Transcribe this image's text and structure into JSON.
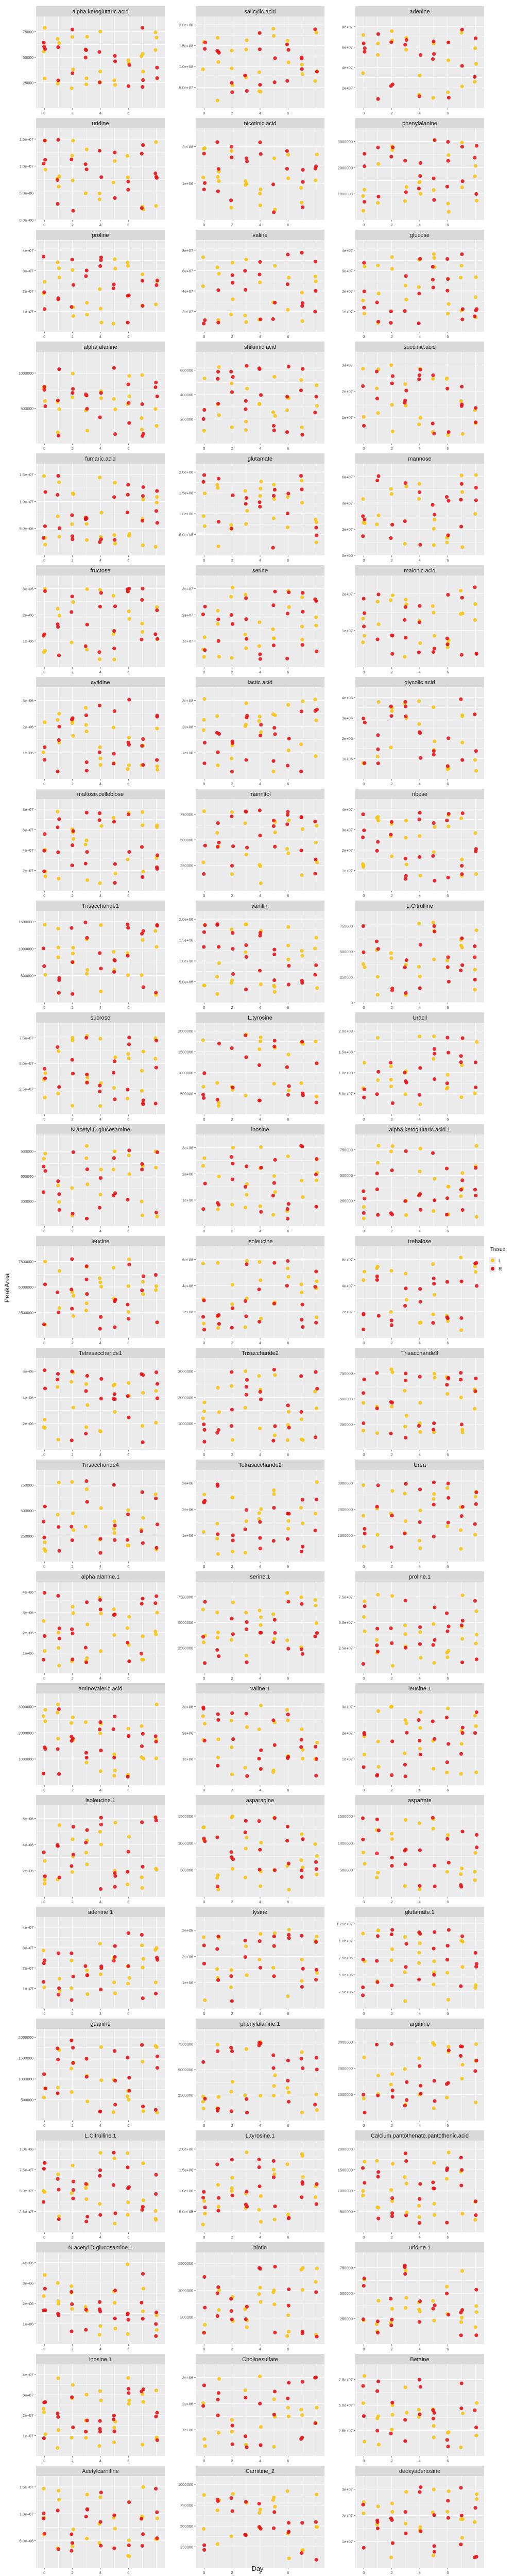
{
  "figure": {
    "xlabel": "Day",
    "ylabel": "PeakArea",
    "legend_title": "Tissue",
    "legend_position": "right",
    "x_ticks": [
      "0",
      "2",
      "4",
      "6"
    ],
    "series": [
      {
        "name": "L",
        "color": "#F5C518"
      },
      {
        "name": "R",
        "color": "#E0161A"
      }
    ],
    "panel_bg": "#EBEBEB",
    "strip_bg": "#D9D9D9",
    "grid_color": "#FFFFFF"
  },
  "chart_data": {
    "type": "scatter",
    "facets": [
      {
        "title": "alpha.ketoglutaric.acid",
        "y_ticks": [
          "25000",
          "50000",
          "75000"
        ],
        "ylim": [
          0,
          90000
        ]
      },
      {
        "title": "salicylic.acid",
        "y_ticks": [
          "5.0e+07",
          "1.0e+08",
          "1.5e+08",
          "2.0e+08"
        ],
        "ylim": [
          0,
          220000000.0
        ]
      },
      {
        "title": "adenine",
        "y_ticks": [
          "2e+07",
          "4e+07",
          "6e+07",
          "8e+07"
        ],
        "ylim": [
          0,
          90000000.0
        ]
      },
      {
        "title": "uridine",
        "y_ticks": [
          "0.0e+00",
          "5.0e+06",
          "1.0e+07",
          "1.5e+07"
        ],
        "ylim": [
          0,
          17000000.0
        ]
      },
      {
        "title": "nicotinic.acid",
        "y_ticks": [
          "1e+06",
          "2e+06"
        ],
        "ylim": [
          0,
          2500000.0
        ]
      },
      {
        "title": "phenylalanine",
        "y_ticks": [
          "1000000",
          "2000000",
          "3000000"
        ],
        "ylim": [
          0,
          3500000
        ]
      },
      {
        "title": "proline",
        "y_ticks": [
          "1e+07",
          "2e+07",
          "3e+07",
          "4e+07"
        ],
        "ylim": [
          0,
          45000000.0
        ]
      },
      {
        "title": "valine",
        "y_ticks": [
          "2e+07",
          "4e+07",
          "6e+07",
          "8e+07"
        ],
        "ylim": [
          0,
          90000000.0
        ]
      },
      {
        "title": "glucose",
        "y_ticks": [
          "1e+07",
          "2e+07",
          "3e+07",
          "4e+07"
        ],
        "ylim": [
          0,
          45000000.0
        ]
      },
      {
        "title": "alpha.alanine",
        "y_ticks": [
          "500000",
          "1000000"
        ],
        "ylim": [
          0,
          1300000
        ]
      },
      {
        "title": "shikimic.acid",
        "y_ticks": [
          "200000",
          "400000",
          "600000"
        ],
        "ylim": [
          0,
          750000
        ]
      },
      {
        "title": "succinic.acid",
        "y_ticks": [
          "1e+07",
          "2e+07",
          "3e+07"
        ],
        "ylim": [
          0,
          35000000.0
        ]
      },
      {
        "title": "fumaric.acid",
        "y_ticks": [
          "5.0e+06",
          "1.0e+07",
          "1.5e+07"
        ],
        "ylim": [
          0,
          17000000.0
        ]
      },
      {
        "title": "glutamate",
        "y_ticks": [
          "5.0e+05",
          "1.0e+06",
          "1.5e+06",
          "2.0e+06"
        ],
        "ylim": [
          0,
          2200000.0
        ]
      },
      {
        "title": "mannose",
        "y_ticks": [
          "0e+00",
          "2e+07",
          "4e+07",
          "6e+07"
        ],
        "ylim": [
          0,
          70000000.0
        ]
      },
      {
        "title": "fructose",
        "y_ticks": [
          "1e+06",
          "2e+06",
          "3e+06"
        ],
        "ylim": [
          0,
          3500000.0
        ]
      },
      {
        "title": "serine",
        "y_ticks": [
          "1e+07",
          "2e+07",
          "3e+07"
        ],
        "ylim": [
          0,
          35000000.0
        ]
      },
      {
        "title": "malonic.acid",
        "y_ticks": [
          "1e+07",
          "2e+07"
        ],
        "ylim": [
          0,
          25000000.0
        ]
      },
      {
        "title": "cytidine",
        "y_ticks": [
          "1e+06",
          "2e+06",
          "3e+06"
        ],
        "ylim": [
          0,
          3500000.0
        ]
      },
      {
        "title": "lactic.acid",
        "y_ticks": [
          "1e+08",
          "2e+08",
          "3e+08"
        ],
        "ylim": [
          0,
          350000000.0
        ]
      },
      {
        "title": "glycolic.acid",
        "y_ticks": [
          "1e+06",
          "2e+06",
          "3e+06",
          "4e+06"
        ],
        "ylim": [
          0,
          4500000.0
        ]
      },
      {
        "title": "maltose.cellobiose",
        "y_ticks": [
          "2e+07",
          "4e+07",
          "6e+07",
          "8e+07"
        ],
        "ylim": [
          0,
          90000000.0
        ]
      },
      {
        "title": "mannitol",
        "y_ticks": [
          "250000",
          "500000",
          "750000"
        ],
        "ylim": [
          0,
          900000
        ]
      },
      {
        "title": "ribose",
        "y_ticks": [
          "1e+07",
          "2e+07",
          "3e+07",
          "4e+07"
        ],
        "ylim": [
          0,
          45000000.0
        ]
      },
      {
        "title": "Trisaccharide1",
        "y_ticks": [
          "500000",
          "1000000",
          "1500000"
        ],
        "ylim": [
          0,
          1700000
        ]
      },
      {
        "title": "vanillin",
        "y_ticks": [
          "5.0e+05",
          "1.0e+06",
          "1.5e+06",
          "2.0e+06"
        ],
        "ylim": [
          0,
          2200000.0
        ]
      },
      {
        "title": "L.Citrulline",
        "y_ticks": [
          "0",
          "250000",
          "500000",
          "750000"
        ],
        "ylim": [
          0,
          900000
        ]
      },
      {
        "title": "sucrose",
        "y_ticks": [
          "2.5e+07",
          "5.0e+07",
          "7.5e+07"
        ],
        "ylim": [
          0,
          90000000.0
        ]
      },
      {
        "title": "L.tyrosine",
        "y_ticks": [
          "500000",
          "1000000",
          "1500000",
          "2000000"
        ],
        "ylim": [
          0,
          2200000
        ]
      },
      {
        "title": "Uracil",
        "y_ticks": [
          "5.0e+07",
          "1.0e+08",
          "1.5e+08",
          "2.0e+08"
        ],
        "ylim": [
          0,
          220000000.0
        ]
      },
      {
        "title": "N.acetyl.D.glucosamine",
        "y_ticks": [
          "300000",
          "600000",
          "900000"
        ],
        "ylim": [
          0,
          1100000
        ]
      },
      {
        "title": "inosine",
        "y_ticks": [
          "1e+06",
          "2e+06",
          "3e+06"
        ],
        "ylim": [
          0,
          3500000.0
        ]
      },
      {
        "title": "alpha.ketoglutaric.acid.1",
        "y_ticks": [
          "250000",
          "500000",
          "750000"
        ],
        "ylim": [
          0,
          900000
        ]
      },
      {
        "title": "leucine",
        "y_ticks": [
          "2500000",
          "5000000",
          "7500000"
        ],
        "ylim": [
          0,
          9000000
        ]
      },
      {
        "title": "isoleucine",
        "y_ticks": [
          "2e+06",
          "4e+06",
          "6e+06"
        ],
        "ylim": [
          0,
          7000000.0
        ]
      },
      {
        "title": "trehalose",
        "y_ticks": [
          "2e+07",
          "4e+07",
          "6e+07"
        ],
        "ylim": [
          0,
          70000000.0
        ]
      },
      {
        "title": "Tetrasaccharide1",
        "y_ticks": [
          "2e+06",
          "4e+06",
          "6e+06"
        ],
        "ylim": [
          0,
          7000000.0
        ]
      },
      {
        "title": "Trisaccharide2",
        "y_ticks": [
          "1000000",
          "2000000",
          "3000000"
        ],
        "ylim": [
          0,
          3500000
        ]
      },
      {
        "title": "Trisaccharide3",
        "y_ticks": [
          "250000",
          "500000",
          "750000"
        ],
        "ylim": [
          0,
          900000
        ]
      },
      {
        "title": "Trisaccharide4",
        "y_ticks": [
          "250000",
          "500000",
          "750000"
        ],
        "ylim": [
          0,
          900000
        ]
      },
      {
        "title": "Tetrasaccharide2",
        "y_ticks": [
          "1e+06",
          "2e+06",
          "3e+06"
        ],
        "ylim": [
          0,
          3500000.0
        ]
      },
      {
        "title": "Urea",
        "y_ticks": [
          "1000000",
          "2000000",
          "3000000"
        ],
        "ylim": [
          0,
          3500000
        ]
      },
      {
        "title": "alpha.alanine.1",
        "y_ticks": [
          "1e+06",
          "2e+06",
          "3e+06",
          "4e+06"
        ],
        "ylim": [
          0,
          4500000.0
        ]
      },
      {
        "title": "serine.1",
        "y_ticks": [
          "2500000",
          "5000000",
          "7500000"
        ],
        "ylim": [
          0,
          9000000
        ]
      },
      {
        "title": "proline.1",
        "y_ticks": [
          "2.5e+07",
          "5.0e+07",
          "7.5e+07"
        ],
        "ylim": [
          0,
          90000000.0
        ]
      },
      {
        "title": "aminovaleric.acid",
        "y_ticks": [
          "1000000",
          "2000000",
          "3000000"
        ],
        "ylim": [
          0,
          3500000
        ]
      },
      {
        "title": "valine.1",
        "y_ticks": [
          "1e+06",
          "2e+06",
          "3e+06"
        ],
        "ylim": [
          0,
          3500000.0
        ]
      },
      {
        "title": "leucine.1",
        "y_ticks": [
          "1e+07",
          "2e+07",
          "3e+07"
        ],
        "ylim": [
          0,
          35000000.0
        ]
      },
      {
        "title": "isoleucine.1",
        "y_ticks": [
          "2e+06",
          "4e+06",
          "6e+06"
        ],
        "ylim": [
          0,
          7000000.0
        ]
      },
      {
        "title": "asparagine",
        "y_ticks": [
          "500000",
          "1000000",
          "1500000"
        ],
        "ylim": [
          0,
          1700000
        ]
      },
      {
        "title": "aspartate",
        "y_ticks": [
          "500000",
          "1000000",
          "1500000"
        ],
        "ylim": [
          0,
          1700000
        ]
      },
      {
        "title": "adenine.1",
        "y_ticks": [
          "1e+07",
          "2e+07",
          "3e+07",
          "4e+07"
        ],
        "ylim": [
          0,
          45000000.0
        ]
      },
      {
        "title": "lysine",
        "y_ticks": [
          "1e+06",
          "2e+06",
          "3e+06"
        ],
        "ylim": [
          0,
          3500000.0
        ]
      },
      {
        "title": "glutamate.1",
        "y_ticks": [
          "2.5e+06",
          "5.0e+06",
          "7.5e+06",
          "1.0e+07",
          "1.25e+07"
        ],
        "ylim": [
          0,
          13500000.0
        ]
      },
      {
        "title": "guanine",
        "y_ticks": [
          "500000",
          "1000000",
          "1500000",
          "2000000"
        ],
        "ylim": [
          0,
          2200000
        ]
      },
      {
        "title": "phenylalanine.1",
        "y_ticks": [
          "2500000",
          "5000000",
          "7500000"
        ],
        "ylim": [
          0,
          9000000
        ]
      },
      {
        "title": "arginine",
        "y_ticks": [
          "1000000",
          "2000000",
          "3000000"
        ],
        "ylim": [
          0,
          3500000
        ]
      },
      {
        "title": "L.Citrulline.1",
        "y_ticks": [
          "2.5e+07",
          "5.0e+07",
          "7.5e+07",
          "1.0e+08"
        ],
        "ylim": [
          0,
          110000000.0
        ]
      },
      {
        "title": "L.tyrosine.1",
        "y_ticks": [
          "5.0e+05",
          "1.0e+06",
          "1.5e+06",
          "2.0e+06"
        ],
        "ylim": [
          0,
          2200000.0
        ]
      },
      {
        "title": "Calcium.pantothenate.pantothenic.acid",
        "y_ticks": [
          "500000",
          "1000000",
          "1500000",
          "2000000"
        ],
        "ylim": [
          0,
          2200000
        ]
      },
      {
        "title": "N.acetyl.D.glucosamine.1",
        "y_ticks": [
          "1e+06",
          "2e+06",
          "3e+06",
          "4e+06"
        ],
        "ylim": [
          0,
          4500000.0
        ]
      },
      {
        "title": "biotin",
        "y_ticks": [
          "500000",
          "1000000",
          "1500000"
        ],
        "ylim": [
          0,
          1700000
        ]
      },
      {
        "title": "uridine.1",
        "y_ticks": [
          "250000",
          "500000",
          "750000"
        ],
        "ylim": [
          0,
          900000
        ]
      },
      {
        "title": "inosine.1",
        "y_ticks": [
          "1e+07",
          "2e+07",
          "3e+07",
          "4e+07"
        ],
        "ylim": [
          0,
          45000000.0
        ]
      },
      {
        "title": "Cholinesulfate",
        "y_ticks": [
          "1e+06",
          "2e+06",
          "3e+06"
        ],
        "ylim": [
          0,
          3500000.0
        ]
      },
      {
        "title": "Betaine",
        "y_ticks": [
          "2.5e+07",
          "5.0e+07",
          "7.5e+07"
        ],
        "ylim": [
          0,
          90000000.0
        ]
      },
      {
        "title": "Acetylcarnitine",
        "y_ticks": [
          "5.0e+06",
          "1.0e+07",
          "1.5e+07"
        ],
        "ylim": [
          0,
          17000000.0
        ]
      },
      {
        "title": "Carnitine_2",
        "y_ticks": [
          "250000",
          "500000",
          "750000",
          "1000000"
        ],
        "ylim": [
          0,
          1100000
        ]
      },
      {
        "title": "deoxyadenosine",
        "y_ticks": [
          "1e+07",
          "2e+07",
          "3e+07"
        ],
        "ylim": [
          0,
          35000000.0
        ]
      }
    ]
  }
}
